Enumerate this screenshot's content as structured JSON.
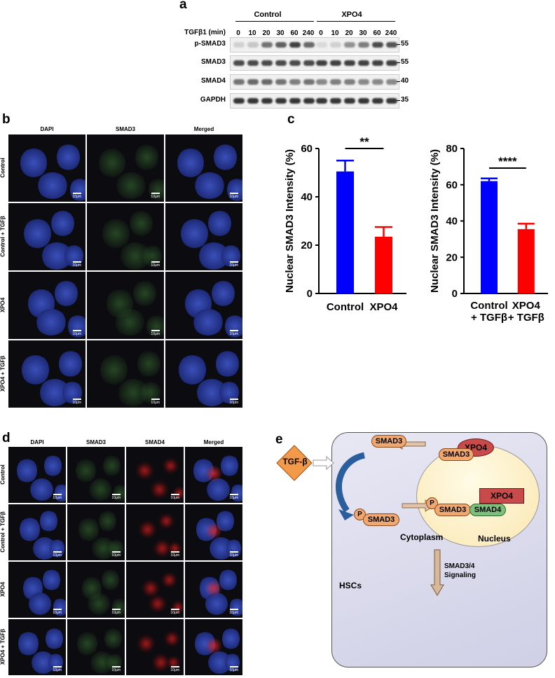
{
  "panel_labels": {
    "a": "a",
    "b": "b",
    "c": "c",
    "d": "d",
    "e": "e"
  },
  "blot": {
    "groups": [
      "Control",
      "XPO4"
    ],
    "treatment_label": "TGFβ1 (min)",
    "lanes": [
      "0",
      "10",
      "20",
      "30",
      "60",
      "240",
      "0",
      "10",
      "20",
      "30",
      "60",
      "240"
    ],
    "rows": [
      {
        "label": "p-SMAD3",
        "mw": "55",
        "intensity": [
          0.15,
          0.2,
          0.6,
          0.7,
          0.85,
          0.65,
          0.1,
          0.15,
          0.45,
          0.55,
          0.8,
          0.75
        ]
      },
      {
        "label": "SMAD3",
        "mw": "55",
        "intensity": [
          0.8,
          0.8,
          0.8,
          0.8,
          0.8,
          0.8,
          0.85,
          0.85,
          0.85,
          0.85,
          0.85,
          0.85
        ]
      },
      {
        "label": "SMAD4",
        "mw": "40",
        "intensity": [
          0.6,
          0.65,
          0.65,
          0.6,
          0.55,
          0.6,
          0.5,
          0.55,
          0.55,
          0.5,
          0.5,
          0.5
        ]
      },
      {
        "label": "GAPDH",
        "mw": "35",
        "intensity": [
          0.9,
          0.9,
          0.9,
          0.9,
          0.9,
          0.9,
          0.9,
          0.9,
          0.9,
          0.9,
          0.9,
          0.9
        ]
      }
    ]
  },
  "panel_b": {
    "columns": [
      "DAPI",
      "SMAD3",
      "Merged"
    ],
    "rows": [
      "Control",
      "Control + TGFβ",
      "XPO4",
      "XPO4 + TGFβ"
    ],
    "scale_bar": "10μm"
  },
  "panel_d": {
    "columns": [
      "DAPI",
      "SMAD3",
      "SMAD4",
      "Merged"
    ],
    "rows": [
      "Control",
      "Control + TGFβ",
      "XPO4",
      "XPO4 + TGFβ"
    ],
    "scale_bar": "10μm"
  },
  "chart_data": [
    {
      "type": "bar",
      "categories": [
        "Control",
        "XPO4"
      ],
      "values": [
        50.5,
        23.5
      ],
      "errors": [
        4.5,
        4.0
      ],
      "colors": [
        "#0000ff",
        "#ff0000"
      ],
      "ylabel": "Nuclear SMAD3 Intensity (%)",
      "ylim": [
        0,
        60
      ],
      "yticks": [
        "0",
        "20",
        "40",
        "60"
      ],
      "significance": "**"
    },
    {
      "type": "bar",
      "categories": [
        "Control\n+ TGFβ",
        "XPO4\n+ TGFβ"
      ],
      "category_lines": [
        [
          "Control",
          "+ TGFβ"
        ],
        [
          "XPO4",
          "+ TGFβ"
        ]
      ],
      "values": [
        62,
        35.5
      ],
      "errors": [
        1.5,
        3.0
      ],
      "colors": [
        "#0000ff",
        "#ff0000"
      ],
      "ylabel": "Nuclear SMAD3 Intensity (%)",
      "ylim": [
        0,
        80
      ],
      "yticks": [
        "0",
        "20",
        "40",
        "60",
        "80"
      ],
      "significance": "****"
    }
  ],
  "diagram": {
    "tgfb": "TGF-β",
    "smad3": "SMAD3",
    "smad4": "SMAD4",
    "xpo4": "XPO4",
    "p": "P",
    "cytoplasm": "Cytoplasm",
    "nucleus": "Nucleus",
    "hscs": "HSCs",
    "signaling_1": "SMAD3/4",
    "signaling_2": "Signaling"
  }
}
